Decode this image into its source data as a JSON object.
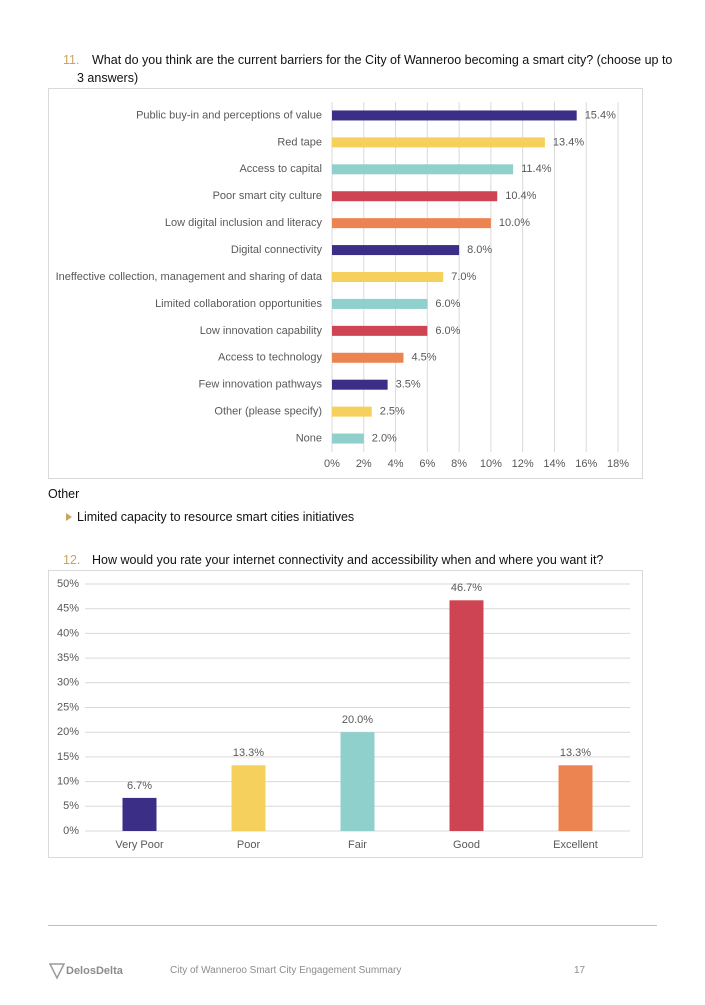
{
  "question_11": {
    "number": "11.",
    "text": "What do you think are the current barriers for the City of Wanneroo becoming a smart city? (choose up to 3 answers)"
  },
  "other": {
    "heading": "Other",
    "items": [
      "Limited capacity to resource smart cities initiatives"
    ]
  },
  "question_12": {
    "number": "12.",
    "text": "How would you rate your internet connectivity and accessibility when and where you want it?"
  },
  "footer": {
    "logo": "DelosDelta",
    "title": "City of Wanneroo Smart City Engagement Summary",
    "page": "17"
  },
  "chart_data": [
    {
      "type": "barh",
      "categories": [
        "Public buy-in and perceptions of value",
        "Red tape",
        "Access to capital",
        "Poor smart city culture",
        "Low digital inclusion and literacy",
        "Digital connectivity",
        "Ineffective collection, management and sharing of data",
        "Limited collaboration opportunities",
        "Low innovation capability",
        "Access to technology",
        "Few innovation pathways",
        "Other (please specify)",
        "None"
      ],
      "values": [
        15.4,
        13.4,
        11.4,
        10.4,
        10.0,
        8.0,
        7.0,
        6.0,
        6.0,
        4.5,
        3.5,
        2.5,
        2.0
      ],
      "value_labels": [
        "15.4%",
        "13.4%",
        "11.4%",
        "10.4%",
        "10.0%",
        "8.0%",
        "7.0%",
        "6.0%",
        "6.0%",
        "4.5%",
        "3.5%",
        "2.5%",
        "2.0%"
      ],
      "colors": [
        "#3a2e86",
        "#f6d05c",
        "#8fcfcc",
        "#cf4452",
        "#ec8452",
        "#3a2e86",
        "#f6d05c",
        "#8fcfcc",
        "#cf4452",
        "#ec8452",
        "#3a2e86",
        "#f6d05c",
        "#8fcfcc"
      ],
      "xlim": [
        0,
        18
      ],
      "xticks": [
        {
          "value": 0,
          "label": "0%"
        },
        {
          "value": 2,
          "label": "2%"
        },
        {
          "value": 4,
          "label": "4%"
        },
        {
          "value": 6,
          "label": "6%"
        },
        {
          "value": 8,
          "label": "8%"
        },
        {
          "value": 10,
          "label": "10%"
        },
        {
          "value": 12,
          "label": "12%"
        },
        {
          "value": 14,
          "label": "14%"
        },
        {
          "value": 16,
          "label": "16%"
        },
        {
          "value": 18,
          "label": "18%"
        }
      ],
      "grid": true
    },
    {
      "type": "bar",
      "categories": [
        "Very Poor",
        "Poor",
        "Fair",
        "Good",
        "Excellent"
      ],
      "values": [
        6.7,
        13.3,
        20.0,
        46.7,
        13.3
      ],
      "value_labels": [
        "6.7%",
        "13.3%",
        "20.0%",
        "46.7%",
        "13.3%"
      ],
      "colors": [
        "#3a2e86",
        "#f6d05c",
        "#8fcfcc",
        "#cf4452",
        "#ec8452"
      ],
      "ylim": [
        0,
        50
      ],
      "yticks": [
        {
          "value": 0,
          "label": "0%"
        },
        {
          "value": 5,
          "label": "5%"
        },
        {
          "value": 10,
          "label": "10%"
        },
        {
          "value": 15,
          "label": "15%"
        },
        {
          "value": 20,
          "label": "20%"
        },
        {
          "value": 25,
          "label": "25%"
        },
        {
          "value": 30,
          "label": "30%"
        },
        {
          "value": 35,
          "label": "35%"
        },
        {
          "value": 40,
          "label": "40%"
        },
        {
          "value": 45,
          "label": "45%"
        },
        {
          "value": 50,
          "label": "50%"
        }
      ],
      "grid": true
    }
  ]
}
